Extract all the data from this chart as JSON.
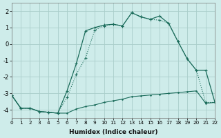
{
  "xlabel": "Humidex (Indice chaleur)",
  "background_color": "#ceecea",
  "grid_color": "#aaceca",
  "line_color": "#1a6b5a",
  "xlim": [
    0,
    22
  ],
  "ylim": [
    -4.5,
    2.5
  ],
  "xticks": [
    0,
    1,
    2,
    3,
    4,
    5,
    6,
    7,
    8,
    9,
    10,
    11,
    12,
    13,
    14,
    15,
    16,
    17,
    18,
    19,
    20,
    21,
    22
  ],
  "yticks": [
    -4,
    -3,
    -2,
    -1,
    0,
    1,
    2
  ],
  "s1_x": [
    0,
    1,
    2,
    3,
    4,
    5,
    6,
    7,
    8,
    9,
    10,
    11,
    12,
    13,
    14,
    15,
    16,
    17,
    18,
    19,
    20,
    21,
    22
  ],
  "s1_y": [
    -3.1,
    -3.9,
    -3.9,
    -4.1,
    -4.15,
    -4.2,
    -4.2,
    -3.95,
    -3.8,
    -3.7,
    -3.55,
    -3.45,
    -3.35,
    -3.2,
    -3.15,
    -3.1,
    -3.05,
    -3.0,
    -2.95,
    -2.9,
    -2.85,
    -3.6,
    -3.55
  ],
  "s2_x": [
    0,
    1,
    2,
    3,
    4,
    5,
    6,
    7,
    8,
    9,
    10,
    11,
    12,
    13,
    14,
    15,
    16,
    17,
    18,
    19,
    20,
    21,
    22
  ],
  "s2_y": [
    -3.1,
    -3.9,
    -3.9,
    -4.1,
    -4.15,
    -4.2,
    -3.25,
    -1.85,
    -0.85,
    0.85,
    1.1,
    1.2,
    1.1,
    1.9,
    1.65,
    1.5,
    1.45,
    1.25,
    0.15,
    -0.9,
    -1.6,
    -3.55,
    -3.55
  ],
  "s3_x": [
    0,
    1,
    2,
    3,
    4,
    5,
    6,
    7,
    8,
    9,
    10,
    11,
    12,
    13,
    14,
    15,
    16,
    17,
    18,
    19,
    20,
    21,
    22
  ],
  "s3_y": [
    -3.1,
    -3.9,
    -3.9,
    -4.1,
    -4.15,
    -4.2,
    -2.85,
    -1.2,
    0.8,
    1.0,
    1.15,
    1.2,
    1.1,
    1.9,
    1.65,
    1.5,
    1.7,
    1.25,
    0.15,
    -0.9,
    -1.6,
    -1.6,
    -3.55
  ]
}
